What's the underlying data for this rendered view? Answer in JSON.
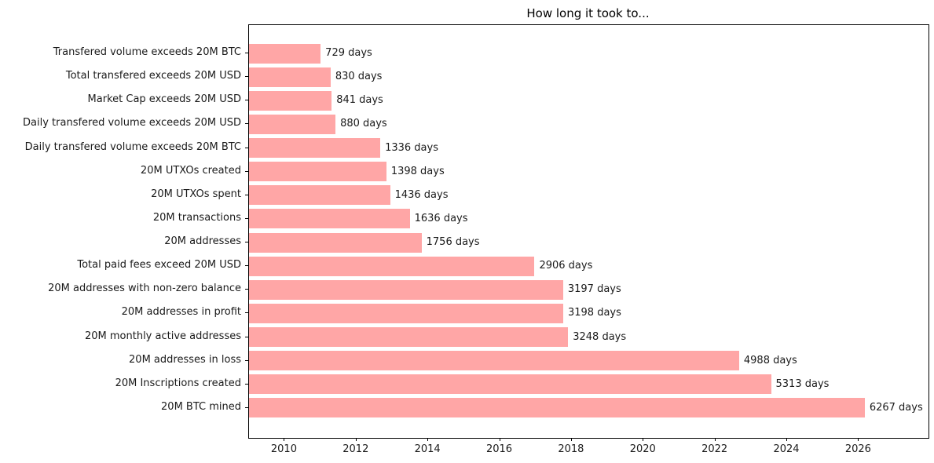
{
  "title": "How long it took to...",
  "chart_data": {
    "type": "bar",
    "orientation": "horizontal",
    "title": "How long it took to...",
    "value_unit_suffix": " days",
    "categories": [
      "Transfered volume exceeds 20M BTC",
      "Total transfered exceeds 20M USD",
      "Market Cap exceeds 20M USD",
      "Daily transfered volume exceeds 20M USD",
      "Daily transfered volume exceeds 20M BTC",
      "20M UTXOs created",
      "20M UTXOs spent",
      "20M transactions",
      "20M addresses",
      "Total paid fees exceed 20M USD",
      "20M addresses with non-zero balance",
      "20M addresses in profit",
      "20M monthly active addresses",
      "20M addresses in loss",
      "20M Inscriptions created",
      "20M BTC mined"
    ],
    "values_days": [
      729,
      830,
      841,
      880,
      1336,
      1398,
      1436,
      1636,
      1756,
      2906,
      3197,
      3198,
      3248,
      4988,
      5313,
      6267
    ],
    "x_axis": {
      "tick_labels": [
        "2010",
        "2012",
        "2014",
        "2016",
        "2018",
        "2020",
        "2022",
        "2024",
        "2026"
      ],
      "tick_years": [
        2010,
        2012,
        2014,
        2016,
        2018,
        2020,
        2022,
        2024,
        2026
      ],
      "min_year": 2009.0055,
      "max_year": 2027.94
    },
    "grid": false,
    "legend": null,
    "colors": {
      "bar": "#ffa6a6",
      "axis": "#000000",
      "text": "#1a1a1a",
      "background": "#ffffff"
    }
  }
}
